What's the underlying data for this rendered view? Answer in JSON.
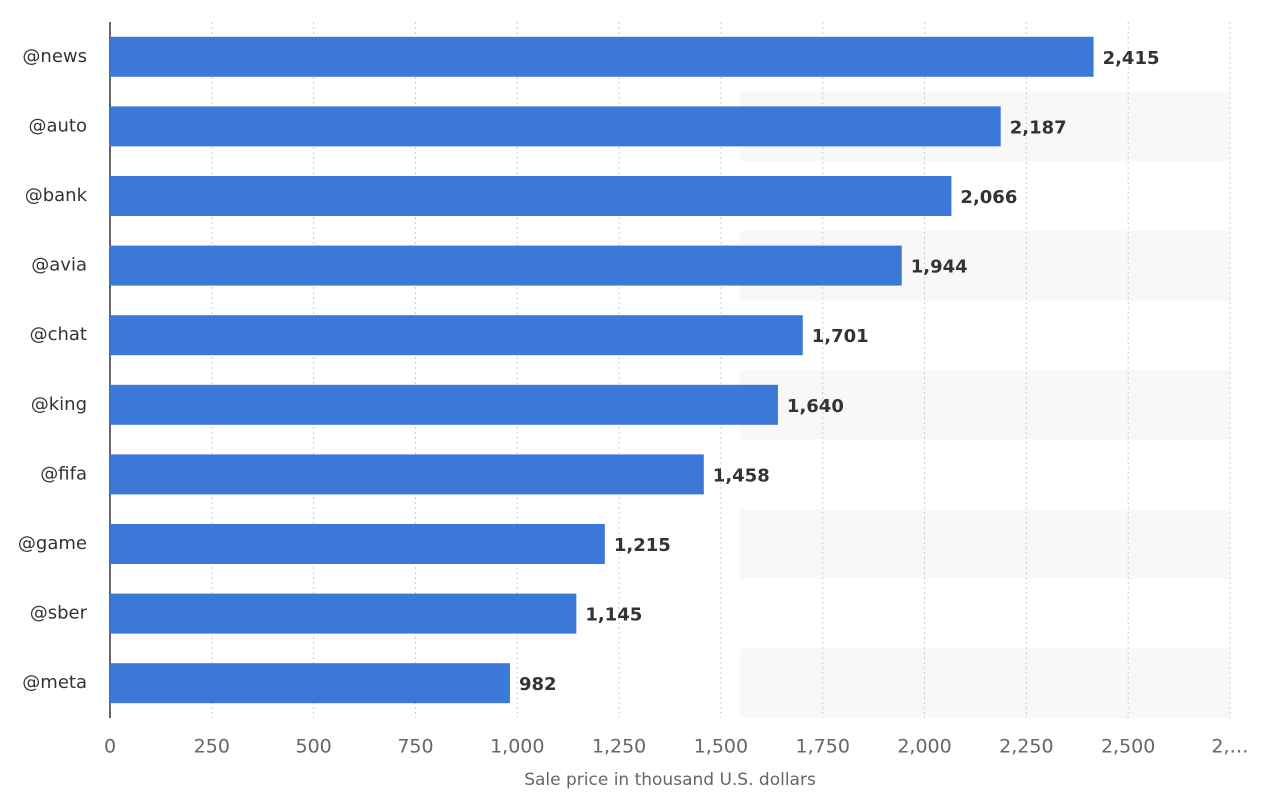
{
  "chart_data": {
    "type": "bar",
    "orientation": "horizontal",
    "x_label": "Sale price in thousand U.S. dollars",
    "categories": [
      "@news",
      "@auto",
      "@bank",
      "@avia",
      "@chat",
      "@king",
      "@fifa",
      "@game",
      "@sber",
      "@meta"
    ],
    "values": [
      2415,
      2187,
      2066,
      1944,
      1701,
      1640,
      1458,
      1215,
      1145,
      982
    ],
    "value_labels": [
      "2,415",
      "2,187",
      "2,066",
      "1,944",
      "1,701",
      "1,640",
      "1,458",
      "1,215",
      "1,145",
      "982"
    ],
    "color": "#3c78d8",
    "xlim": [
      0,
      2750
    ],
    "xticks": [
      0,
      250,
      500,
      750,
      {
        "value": 1000,
        "label": "1,000"
      },
      {
        "value": 1250,
        "label": "1,250"
      },
      {
        "value": 1500,
        "label": "1,500"
      },
      {
        "value": 1750,
        "label": "1,750"
      },
      {
        "value": 2000,
        "label": "2,000"
      },
      {
        "value": 2250,
        "label": "2,250"
      },
      {
        "value": 2500,
        "label": "2,500"
      },
      {
        "value": 2750,
        "label": "2,…"
      }
    ],
    "grid": true
  }
}
